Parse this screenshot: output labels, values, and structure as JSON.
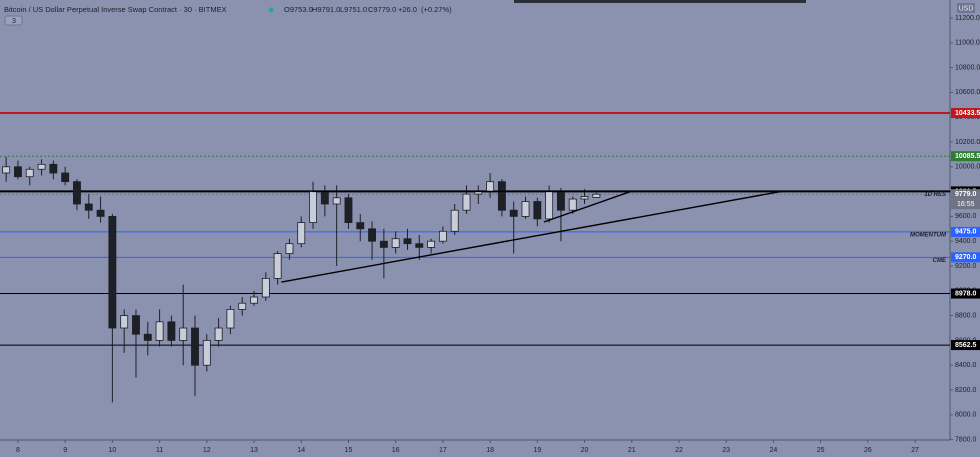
{
  "chart_data": {
    "type": "candlestick",
    "title": "Bitcoin / US Dollar Perpetual Inverse Swap Contract · 30 · BITMEX",
    "legend_values": [
      {
        "value": 9753.0,
        "label": "O9753.0"
      },
      {
        "value": 9791.0,
        "label": "H9791.0"
      },
      {
        "value": 9751.0,
        "label": "L9751.0"
      },
      {
        "value": 9779.0,
        "label": "C9779.0"
      },
      {
        "value": 26.0,
        "label": "+26.0"
      },
      {
        "value": 0.27,
        "label": "(+0.27%)"
      }
    ],
    "currency": "USD",
    "indicator_count": "3",
    "countdown": "16:55",
    "background": "#8a92b0",
    "up_color": "#c9cdd9",
    "down_color": "#1e2027",
    "xlim": [
      7.62,
      27.74
    ],
    "xticks": [
      8,
      9,
      10,
      11,
      12,
      13,
      14,
      15,
      16,
      17,
      18,
      19,
      20,
      21,
      22,
      23,
      24,
      25,
      26,
      27
    ],
    "ylim": [
      7797,
      11345
    ],
    "yticks": [
      {
        "value": 7800,
        "label": "7800.0"
      },
      {
        "value": 8000,
        "label": "8000.0"
      },
      {
        "value": 8200,
        "label": "8200.0"
      },
      {
        "value": 8400,
        "label": "8400.0"
      },
      {
        "value": 8600,
        "label": "8600.0"
      },
      {
        "value": 8800,
        "label": "8800.0"
      },
      {
        "value": 9000,
        "label": "9000.0"
      },
      {
        "value": 9200,
        "label": "9200.0"
      },
      {
        "value": 9400,
        "label": "9400.0"
      },
      {
        "value": 9600,
        "label": "9600.0"
      },
      {
        "value": 9800,
        "label": "9800.0"
      },
      {
        "value": 10000,
        "label": "10000.0"
      },
      {
        "value": 10200,
        "label": "10200.0"
      },
      {
        "value": 10400,
        "label": "10400.0"
      },
      {
        "value": 10600,
        "label": "10600.0"
      },
      {
        "value": 10800,
        "label": "10800.0"
      },
      {
        "value": 11000,
        "label": "11000.0"
      },
      {
        "value": 11200,
        "label": "11200.0"
      }
    ],
    "candles": {
      "x": [
        7.75,
        8.0,
        8.25,
        8.5,
        8.75,
        9.0,
        9.25,
        9.5,
        9.75,
        10.0,
        10.25,
        10.5,
        10.75,
        11.0,
        11.25,
        11.5,
        11.75,
        12.0,
        12.25,
        12.5,
        12.75,
        13.0,
        13.25,
        13.5,
        13.75,
        14.0,
        14.25,
        14.5,
        14.75,
        15.0,
        15.25,
        15.5,
        15.75,
        16.0,
        16.25,
        16.5,
        16.75,
        17.0,
        17.25,
        17.5,
        17.75,
        18.0,
        18.25,
        18.5,
        18.75,
        19.0,
        19.25,
        19.5,
        19.75,
        20.0,
        20.25
      ],
      "open": [
        9950,
        10000,
        9920,
        9980,
        10020,
        9950,
        9880,
        9700,
        9650,
        9600,
        8700,
        8800,
        8650,
        8600,
        8750,
        8600,
        8700,
        8400,
        8600,
        8700,
        8850,
        8900,
        8950,
        9100,
        9300,
        9380,
        9550,
        9800,
        9700,
        9750,
        9550,
        9500,
        9400,
        9350,
        9420,
        9380,
        9350,
        9400,
        9480,
        9650,
        9780,
        9800,
        9880,
        9650,
        9600,
        9720,
        9580,
        9800,
        9650,
        9740,
        9753
      ],
      "high": [
        10080,
        10050,
        10000,
        10060,
        10050,
        10000,
        9900,
        9780,
        9760,
        9620,
        8850,
        8850,
        8750,
        8850,
        8800,
        9050,
        8800,
        8650,
        8780,
        8880,
        8950,
        9000,
        9150,
        9320,
        9420,
        9600,
        9880,
        9850,
        9850,
        9780,
        9620,
        9560,
        9500,
        9480,
        9500,
        9450,
        9420,
        9520,
        9700,
        9850,
        9850,
        9950,
        9900,
        9720,
        9760,
        9750,
        9850,
        9830,
        9760,
        9820,
        9791
      ],
      "low": [
        9880,
        9900,
        9850,
        9930,
        9900,
        9850,
        9650,
        9580,
        9550,
        8100,
        8500,
        8300,
        8480,
        8550,
        8550,
        8400,
        8150,
        8350,
        8550,
        8650,
        8800,
        8880,
        8920,
        9050,
        9250,
        9350,
        9500,
        9600,
        9200,
        9500,
        9400,
        9250,
        9100,
        9300,
        9330,
        9250,
        9300,
        9380,
        9450,
        9620,
        9700,
        9750,
        9600,
        9300,
        9580,
        9520,
        9550,
        9400,
        9620,
        9700,
        9751
      ],
      "close": [
        10000,
        9920,
        9980,
        10020,
        9950,
        9880,
        9700,
        9650,
        9600,
        8700,
        8800,
        8650,
        8600,
        8750,
        8600,
        8700,
        8400,
        8600,
        8700,
        8850,
        8900,
        8950,
        9100,
        9300,
        9380,
        9550,
        9800,
        9700,
        9750,
        9550,
        9500,
        9400,
        9350,
        9420,
        9380,
        9350,
        9400,
        9480,
        9650,
        9780,
        9800,
        9880,
        9650,
        9600,
        9720,
        9580,
        9800,
        9650,
        9740,
        9760,
        9779
      ]
    },
    "levels": [
      {
        "price": 10433.5,
        "color": "#c4161c",
        "width": 2,
        "dash": false
      },
      {
        "price": 10085.5,
        "color": "#2f7d32",
        "width": 1,
        "dash": true
      },
      {
        "price": 9801.5,
        "color": "#000000",
        "width": 2,
        "dash": false,
        "name": "1D RES"
      },
      {
        "price": {
          "value": 9779.0,
          "label": "9779.0"
        },
        "color": "#6f7485",
        "width": 1,
        "dash": true
      },
      {
        "price": {
          "value": 9475.0,
          "label": "9475.0"
        },
        "color": "#2962ff",
        "width": 1,
        "dash": false,
        "name": "MOMENTUM"
      },
      {
        "price": {
          "value": 9270.0,
          "label": "9270.0"
        },
        "color": "#2962ff",
        "width": 1,
        "dash": false,
        "name": "CME"
      },
      {
        "price": {
          "value": 8978.0,
          "label": "8978.0"
        },
        "color": "#000000",
        "width": 1,
        "dash": false
      },
      {
        "price": 8562.5,
        "color": "#000000",
        "width": 1,
        "dash": false
      }
    ],
    "trendlines": [
      {
        "x": [
          13.58,
          24.17
        ],
        "y": [
          9071,
          9801.5
        ]
      },
      {
        "x": [
          14.24,
          24.17
        ],
        "y": [
          9801.5,
          9801.5
        ]
      },
      {
        "x": [
          19.14,
          20.98
        ],
        "y": [
          9555,
          9801.5
        ]
      }
    ]
  }
}
